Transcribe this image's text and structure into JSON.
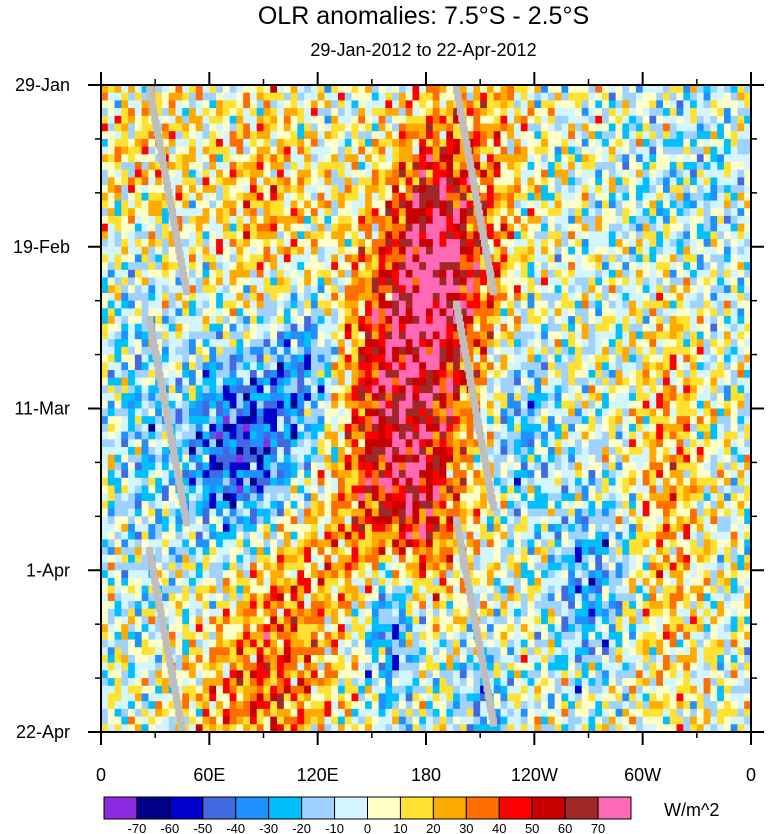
{
  "chart_data": {
    "type": "heatmap",
    "title": "OLR anomalies: 7.5°S - 2.5°S",
    "subtitle": "29-Jan-2012 to 22-Apr-2012",
    "x_ticks": [
      "0",
      "60E",
      "120E",
      "180",
      "120W",
      "60W",
      "0"
    ],
    "x_tick_values": [
      0,
      60,
      120,
      180,
      240,
      300,
      360
    ],
    "xlim": [
      0,
      360
    ],
    "y_ticks": [
      "29-Jan",
      "19-Feb",
      "11-Mar",
      "1-Apr",
      "22-Apr"
    ],
    "y_tick_values": [
      0,
      21,
      42,
      63,
      84
    ],
    "ylim": [
      0,
      84
    ],
    "colorbar": {
      "units": "W/m^2",
      "levels": [
        "-70",
        "-60",
        "-50",
        "-40",
        "-30",
        "-20",
        "-10",
        "0",
        "10",
        "20",
        "30",
        "40",
        "50",
        "60",
        "70"
      ],
      "colors": [
        "#8a2be2",
        "#00008b",
        "#0000cd",
        "#4169e1",
        "#1e90ff",
        "#00bfff",
        "#a0d2ff",
        "#d2f5ff",
        "#ffffc8",
        "#ffe132",
        "#ffaa00",
        "#ff6e00",
        "#ff0000",
        "#c80000",
        "#a02828",
        "#ff69b4"
      ]
    },
    "grid": false,
    "missing_color": "#bebebe"
  }
}
